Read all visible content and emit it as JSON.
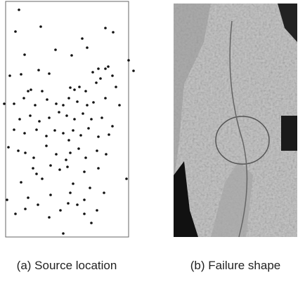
{
  "chart_data": {
    "type": "scatter",
    "x": [
      27,
      22,
      58,
      150,
      161,
      117,
      124,
      35,
      79,
      102,
      183,
      154,
      190,
      6,
      14,
      30,
      55,
      70,
      132,
      140,
      150,
      40,
      44,
      60,
      100,
      106,
      113,
      122,
      137,
      143,
      160,
      165,
      20,
      34,
      50,
      67,
      80,
      90,
      98,
      110,
      124,
      133,
      150,
      170,
      28,
      43,
      56,
      70,
      84,
      95,
      106,
      118,
      130,
      145,
      160,
      20,
      35,
      52,
      66,
      78,
      90,
      98,
      104,
      115,
      126,
      140,
      155,
      12,
      26,
      36,
      48,
      66,
      80,
      94,
      100,
      112,
      122,
      138,
      151,
      47,
      52,
      72,
      85,
      96,
      120,
      140,
      180,
      30,
      60,
      104,
      128,
      148,
      10,
      40,
      72,
      100,
      120,
      54,
      86,
      110,
      138,
      36,
      120,
      130,
      90,
      22,
      70,
      97
    ],
    "y": [
      324,
      293,
      300,
      298,
      292,
      283,
      270,
      260,
      267,
      259,
      252,
      243,
      237,
      190,
      230,
      232,
      238,
      233,
      235,
      240,
      240,
      208,
      210,
      208,
      213,
      210,
      214,
      208,
      220,
      226,
      230,
      214,
      190,
      198,
      188,
      196,
      190,
      188,
      198,
      193,
      188,
      192,
      198,
      188,
      168,
      173,
      165,
      170,
      178,
      173,
      168,
      176,
      168,
      170,
      158,
      153,
      148,
      153,
      144,
      152,
      148,
      138,
      152,
      145,
      155,
      143,
      146,
      128,
      123,
      120,
      113,
      130,
      118,
      110,
      120,
      126,
      113,
      123,
      118,
      98,
      90,
      102,
      96,
      100,
      93,
      98,
      83,
      78,
      83,
      76,
      70,
      63,
      53,
      56,
      60,
      63,
      53,
      46,
      38,
      46,
      38,
      40,
      33,
      20,
      5,
      33,
      28,
      48
    ],
    "color": "#111111",
    "xlim": [
      8,
      183
    ],
    "ylim": [
      0,
      336
    ],
    "caption": "(a) Source location"
  },
  "photo": {
    "caption": "(b) Failure shape"
  }
}
